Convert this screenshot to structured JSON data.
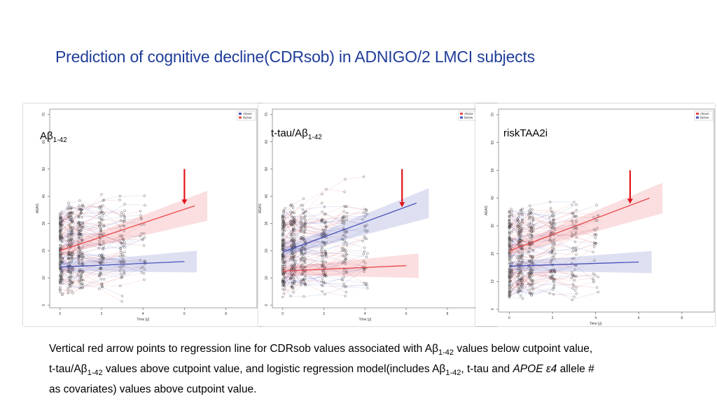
{
  "slide": {
    "title": "Prediction of cognitive decline(CDRsob) in ADNIGO/2 LMCI subjects"
  },
  "colors": {
    "red": "#e8474b",
    "blue": "#4a52b8",
    "arrow": "#e3141b",
    "title": "#1f3d99"
  },
  "caption": {
    "p1": "Vertical red arrow points to regression line for CDRsob values associated with A",
    "beta": "β",
    "sub": "1-42",
    "p2": " values below cutpoint value,",
    "p3": "t-tau/A",
    "p4": " values above cutpoint value, and logistic regression model(includes A",
    "p5": ", t-tau and ",
    "apoe": "APOE ε4",
    "p6": " allele #",
    "p7": "as covariates) values above cutpoint value."
  },
  "chart_data": [
    {
      "type": "line",
      "label": {
        "prefix": "A",
        "beta": "β",
        "sub": "1-42"
      },
      "xlabel": "Time [y]",
      "ylabel": "ADAS",
      "xlim": [
        -0.5,
        9.5
      ],
      "ylim": [
        -1,
        72
      ],
      "xticks": [
        0,
        2,
        4,
        6,
        8
      ],
      "yticks": [
        0,
        10,
        20,
        30,
        40,
        50,
        60,
        70
      ],
      "legend": {
        "position": "top-right",
        "entries": [
          {
            "name": "Above",
            "color": "#4a52b8"
          },
          {
            "name": "Below",
            "color": "#e8474b"
          }
        ]
      },
      "series": [
        {
          "name": "Below",
          "color": "#e8474b",
          "x": [
            0,
            6.5
          ],
          "y": [
            20,
            36.5
          ],
          "ci_lower_end": 31,
          "ci_upper_end": 42
        },
        {
          "name": "Above",
          "color": "#4a52b8",
          "x": [
            0,
            6
          ],
          "y": [
            14,
            16
          ],
          "ci_lower_end": 12,
          "ci_upper_end": 20
        }
      ],
      "arrow": {
        "x": 6,
        "y_top": 50,
        "y_bottom": 37
      }
    },
    {
      "type": "line",
      "label": {
        "prefix": "t-tau/A",
        "beta": "β",
        "sub": "1-42"
      },
      "xlabel": "Time [y]",
      "ylabel": "ADAS",
      "xlim": [
        -0.5,
        9.5
      ],
      "ylim": [
        -1,
        72
      ],
      "xticks": [
        0,
        2,
        4,
        6,
        8
      ],
      "yticks": [
        0,
        10,
        20,
        30,
        40,
        50,
        60,
        70
      ],
      "legend": {
        "position": "top-right",
        "entries": [
          {
            "name": "Above",
            "color": "#e8474b"
          },
          {
            "name": "Below",
            "color": "#4a52b8"
          }
        ]
      },
      "series": [
        {
          "name": "Above",
          "color": "#4a52b8",
          "x": [
            0,
            6.5
          ],
          "y": [
            19.5,
            37.5
          ],
          "ci_lower_end": 32,
          "ci_upper_end": 43
        },
        {
          "name": "Below",
          "color": "#e8474b",
          "x": [
            0,
            6
          ],
          "y": [
            12.5,
            14.5
          ],
          "ci_lower_end": 10,
          "ci_upper_end": 19
        }
      ],
      "arrow": {
        "x": 5.8,
        "y_top": 50,
        "y_bottom": 36
      }
    },
    {
      "type": "line",
      "label": {
        "prefix": "riskTAA2i",
        "beta": "",
        "sub": ""
      },
      "xlabel": "Time [y]",
      "ylabel": "ADAS",
      "xlim": [
        -0.5,
        9.5
      ],
      "ylim": [
        -1,
        72
      ],
      "xticks": [
        0,
        2,
        4,
        6,
        8
      ],
      "yticks": [
        0,
        10,
        20,
        30,
        40,
        50,
        60,
        70
      ],
      "legend": {
        "position": "top-right",
        "entries": [
          {
            "name": "Above",
            "color": "#e8474b"
          },
          {
            "name": "Below",
            "color": "#4a52b8"
          }
        ]
      },
      "series": [
        {
          "name": "Above",
          "color": "#e8474b",
          "x": [
            0,
            6.5
          ],
          "y": [
            21,
            40
          ],
          "ci_lower_end": 34.5,
          "ci_upper_end": 45.5
        },
        {
          "name": "Below",
          "color": "#4a52b8",
          "x": [
            0,
            6
          ],
          "y": [
            15.5,
            17
          ],
          "ci_lower_end": 13,
          "ci_upper_end": 21
        }
      ],
      "arrow": {
        "x": 5.6,
        "y_top": 50,
        "y_bottom": 38
      }
    }
  ]
}
